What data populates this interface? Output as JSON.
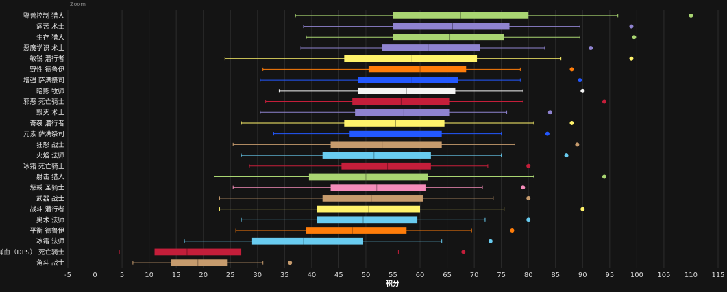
{
  "chart_data": {
    "type": "box",
    "title": "Zoom",
    "xlabel": "积分",
    "ylabel": "",
    "xlim": [
      -5,
      115
    ],
    "xticks": [
      -5,
      0,
      5,
      10,
      15,
      20,
      25,
      30,
      35,
      40,
      45,
      50,
      55,
      60,
      65,
      70,
      75,
      80,
      85,
      90,
      95,
      100,
      105,
      110,
      115
    ],
    "grid": true,
    "series": [
      {
        "name": "野兽控制 猎人",
        "color": "#a9d572",
        "min": 37,
        "q1": 55,
        "median": 67.5,
        "q3": 80,
        "max": 96.5,
        "outlier": 110
      },
      {
        "name": "痛苦 术士",
        "color": "#8f83d0",
        "min": 38.5,
        "q1": 55,
        "median": 66,
        "q3": 76.5,
        "max": 89.5,
        "outlier": 99
      },
      {
        "name": "生存 猎人",
        "color": "#a9d572",
        "min": 39,
        "q1": 55,
        "median": 65.5,
        "q3": 75.5,
        "max": 89.5,
        "outlier": 99.5
      },
      {
        "name": "恶魔学识 术士",
        "color": "#8f83d0",
        "min": 38,
        "q1": 53,
        "median": 61.5,
        "q3": 71,
        "max": 83,
        "outlier": 91.5
      },
      {
        "name": "敏锐 潜行者",
        "color": "#fff36b",
        "min": 24,
        "q1": 46,
        "median": 58.5,
        "q3": 70.5,
        "max": 86,
        "outlier": 99
      },
      {
        "name": "野性 德鲁伊",
        "color": "#ff7d0a",
        "min": 31,
        "q1": 50.5,
        "median": 60,
        "q3": 68.5,
        "max": 78.5,
        "outlier": 88
      },
      {
        "name": "增强 萨满祭司",
        "color": "#2358ff",
        "min": 30.5,
        "q1": 48.5,
        "median": 58.5,
        "q3": 67,
        "max": 78.5,
        "outlier": 89.5
      },
      {
        "name": "暗影 牧师",
        "color": "#f4f4f4",
        "min": 34,
        "q1": 48.5,
        "median": 57.5,
        "q3": 66.5,
        "max": 79,
        "outlier": 90
      },
      {
        "name": "邪恶 死亡骑士",
        "color": "#c41e3a",
        "min": 31.5,
        "q1": 47.5,
        "median": 56.5,
        "q3": 65.5,
        "max": 79,
        "outlier": 94
      },
      {
        "name": "毁灭 术士",
        "color": "#8f83d0",
        "min": 30.5,
        "q1": 48,
        "median": 57,
        "q3": 65.5,
        "max": 76,
        "outlier": 84
      },
      {
        "name": "奇袭 潜行者",
        "color": "#fff36b",
        "min": 27,
        "q1": 46,
        "median": 55.5,
        "q3": 64.5,
        "max": 81,
        "outlier": 88
      },
      {
        "name": "元素 萨满祭司",
        "color": "#2358ff",
        "min": 33,
        "q1": 47,
        "median": 55,
        "q3": 64,
        "max": 75,
        "outlier": 83.5
      },
      {
        "name": "狂怒 战士",
        "color": "#c69b6d",
        "min": 25.5,
        "q1": 43.5,
        "median": 53,
        "q3": 64,
        "max": 77.5,
        "outlier": 89
      },
      {
        "name": "火焰 法师",
        "color": "#69ccf0",
        "min": 27,
        "q1": 42,
        "median": 51.5,
        "q3": 62,
        "max": 75,
        "outlier": 87
      },
      {
        "name": "冰霜 死亡骑士",
        "color": "#c41e3a",
        "min": 28.5,
        "q1": 45.5,
        "median": 54,
        "q3": 62,
        "max": 72.5,
        "outlier": 80
      },
      {
        "name": "射击 猎人",
        "color": "#a9d572",
        "min": 22,
        "q1": 39.5,
        "median": 50,
        "q3": 61.5,
        "max": 81,
        "outlier": 94
      },
      {
        "name": "惩戒 圣骑士",
        "color": "#f58cba",
        "min": 25.5,
        "q1": 43.5,
        "median": 52,
        "q3": 61,
        "max": 71.5,
        "outlier": 79
      },
      {
        "name": "武器 战士",
        "color": "#c69b6d",
        "min": 23,
        "q1": 42,
        "median": 51,
        "q3": 60.5,
        "max": 73.5,
        "outlier": 80
      },
      {
        "name": "战斗 潜行者",
        "color": "#fff36b",
        "min": 23,
        "q1": 41,
        "median": 50.5,
        "q3": 60,
        "max": 75.5,
        "outlier": 90
      },
      {
        "name": "奥术 法师",
        "color": "#69ccf0",
        "min": 27,
        "q1": 41,
        "median": 49.5,
        "q3": 59.5,
        "max": 72,
        "outlier": 80
      },
      {
        "name": "平衡 德鲁伊",
        "color": "#ff7d0a",
        "min": 26,
        "q1": 39,
        "median": 47.5,
        "q3": 57.5,
        "max": 69.5,
        "outlier": 77
      },
      {
        "name": "冰霜 法师",
        "color": "#69ccf0",
        "min": 16.5,
        "q1": 29,
        "median": 38.5,
        "q3": 49.5,
        "max": 64,
        "outlier": 73
      },
      {
        "name": "鲜血（DPS） 死亡骑士",
        "color": "#c41e3a",
        "min": 4.5,
        "q1": 11,
        "median": 17,
        "q3": 27,
        "max": 56,
        "outlier": 68
      },
      {
        "name": "角斗 战士",
        "color": "#c69b6d",
        "min": 7,
        "q1": 14,
        "median": 19,
        "q3": 24.5,
        "max": 31,
        "outlier": 36
      }
    ]
  }
}
